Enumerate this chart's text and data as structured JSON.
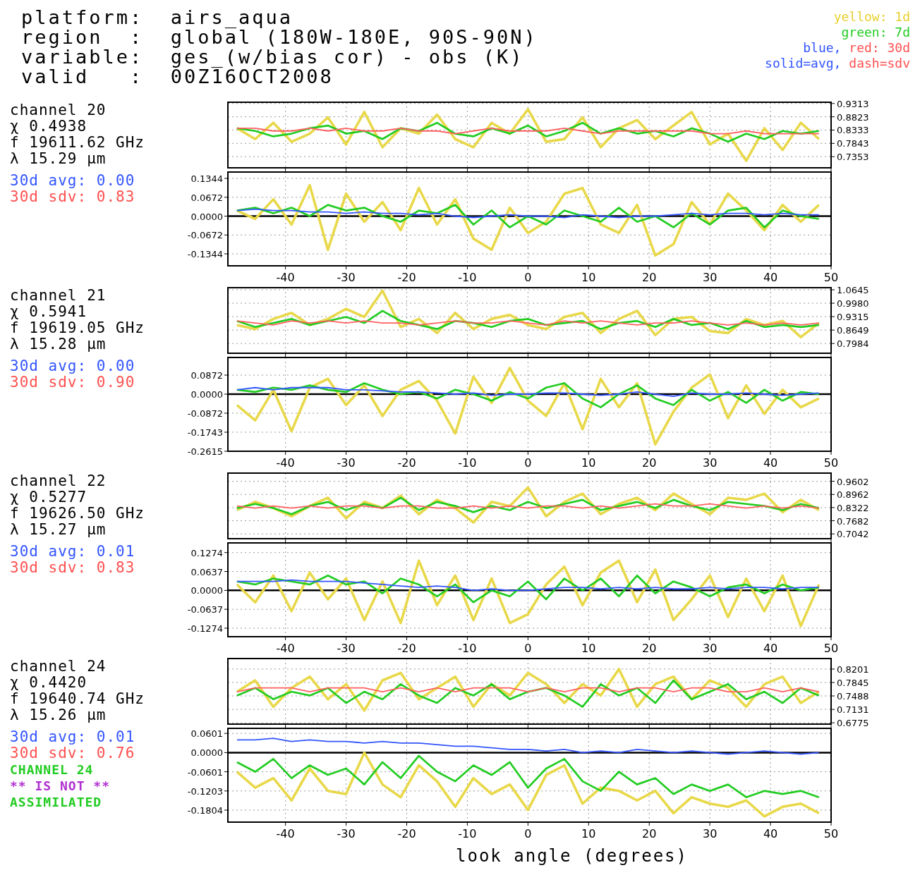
{
  "chart_data": [
    {
      "type": "other",
      "annotations": [
        "platform:  airs_aqua",
        "region  :  global (180W-180E, 90S-90N)",
        "variable:  ges_(w/bias cor) - obs (K)",
        "valid   :  00Z16OCT2008",
        "yellow: 1d",
        "green: 7d",
        "blue,",
        "red: 30d",
        "solid=avg,",
        "dash=sdv"
      ]
    },
    {
      "type": "line",
      "annotations": [
        "channel 20",
        "χ 0.4938",
        "f 19611.62 GHz",
        "λ 15.29 μm",
        "30d avg: 0.00",
        "30d sdv: 0.83"
      ],
      "x": [
        -48,
        -45,
        -42,
        -39,
        -36,
        -33,
        -30,
        -27,
        -24,
        -21,
        -18,
        -15,
        -12,
        -9,
        -6,
        -3,
        0,
        3,
        6,
        9,
        12,
        15,
        18,
        21,
        24,
        27,
        30,
        33,
        36,
        39,
        42,
        45,
        48
      ],
      "xlim": [
        -49.5,
        50
      ],
      "xticks": [
        -40,
        -30,
        -20,
        -10,
        0,
        10,
        20,
        30,
        40,
        50
      ],
      "ylim": [
        0.694,
        0.936
      ],
      "yticks": [
        {
          "value": 0.9313,
          "label": "0.9313"
        },
        {
          "value": 0.8823,
          "label": "0.8823"
        },
        {
          "value": 0.8333,
          "label": "0.8333"
        },
        {
          "value": 0.7843,
          "label": "0.7843"
        },
        {
          "value": 0.7353,
          "label": "0.7353"
        }
      ],
      "grid": true,
      "tick_labels": "y",
      "series": [
        {
          "color": "#e8d84a",
          "values": [
            0.84,
            0.8,
            0.86,
            0.79,
            0.82,
            0.88,
            0.78,
            0.9,
            0.77,
            0.84,
            0.82,
            0.89,
            0.8,
            0.77,
            0.86,
            0.82,
            0.91,
            0.79,
            0.8,
            0.88,
            0.77,
            0.84,
            0.87,
            0.8,
            0.85,
            0.9,
            0.78,
            0.82,
            0.72,
            0.84,
            0.76,
            0.86,
            0.8
          ]
        },
        {
          "color": "#22cc22",
          "values": [
            0.84,
            0.83,
            0.81,
            0.82,
            0.84,
            0.85,
            0.82,
            0.83,
            0.8,
            0.84,
            0.83,
            0.86,
            0.82,
            0.81,
            0.84,
            0.82,
            0.85,
            0.81,
            0.83,
            0.86,
            0.82,
            0.84,
            0.82,
            0.83,
            0.81,
            0.84,
            0.82,
            0.79,
            0.82,
            0.8,
            0.83,
            0.82,
            0.83
          ]
        },
        {
          "color": "#ff6060",
          "values": [
            0.84,
            0.84,
            0.83,
            0.83,
            0.84,
            0.83,
            0.84,
            0.83,
            0.83,
            0.84,
            0.83,
            0.83,
            0.82,
            0.83,
            0.84,
            0.83,
            0.83,
            0.83,
            0.84,
            0.83,
            0.82,
            0.83,
            0.83,
            0.83,
            0.83,
            0.83,
            0.82,
            0.82,
            0.83,
            0.82,
            0.82,
            0.82,
            0.82
          ]
        }
      ]
    },
    {
      "type": "line",
      "x": [
        -48,
        -45,
        -42,
        -39,
        -36,
        -33,
        -30,
        -27,
        -24,
        -21,
        -18,
        -15,
        -12,
        -9,
        -6,
        -3,
        0,
        3,
        6,
        9,
        12,
        15,
        18,
        21,
        24,
        27,
        30,
        33,
        36,
        39,
        42,
        45,
        48
      ],
      "xlim": [
        -49.5,
        50
      ],
      "xticks": [
        -40,
        -30,
        -20,
        -10,
        0,
        10,
        20,
        30,
        40,
        50
      ],
      "ylim": [
        -0.177,
        0.157
      ],
      "yticks": [
        {
          "value": 0.1344,
          "label": "0.1344"
        },
        {
          "value": 0.0672,
          "label": "0.0672"
        },
        {
          "value": 0,
          "label": "0.0000"
        },
        {
          "value": -0.0672,
          "label": "-0.0672"
        },
        {
          "value": -0.1344,
          "label": "-0.1344"
        }
      ],
      "grid": true,
      "ref_lines": [
        {
          "axis": "y",
          "value": 0,
          "color": "#000000"
        }
      ],
      "series": [
        {
          "color": "#e8d84a",
          "values": [
            0.02,
            -0.01,
            0.06,
            -0.03,
            0.11,
            -0.12,
            0.08,
            -0.02,
            0.05,
            -0.05,
            0.1,
            -0.03,
            0.06,
            -0.08,
            -0.12,
            0.03,
            -0.06,
            -0.02,
            0.08,
            0.1,
            -0.03,
            -0.06,
            0.04,
            -0.14,
            -0.1,
            0.05,
            -0.03,
            0.08,
            0.02,
            -0.05,
            0.04,
            -0.02,
            0.04
          ]
        },
        {
          "color": "#22cc22",
          "values": [
            0.02,
            0.03,
            0.01,
            0.03,
            0.0,
            0.04,
            0.02,
            0.03,
            0.0,
            -0.02,
            0.02,
            0.01,
            0.04,
            -0.03,
            0.02,
            -0.04,
            0.0,
            -0.03,
            0.02,
            0.0,
            -0.02,
            0.03,
            -0.02,
            0.0,
            -0.04,
            0.01,
            -0.03,
            0.02,
            0.03,
            -0.04,
            0.02,
            0.0,
            -0.01
          ]
        },
        {
          "color": "#3355ff",
          "values": [
            0.02,
            0.025,
            0.02,
            0.02,
            0.015,
            0.015,
            0.01,
            0.015,
            0.01,
            0.01,
            0.005,
            0.01,
            0.0,
            -0.005,
            0.0,
            0.005,
            0.0,
            0.0,
            -0.005,
            0.005,
            0.0,
            -0.005,
            0.0,
            0.0,
            0.005,
            0.01,
            0.005,
            0.01,
            0.01,
            0.005,
            0.01,
            0.005,
            0.005
          ]
        }
      ]
    },
    {
      "type": "line",
      "annotations": [
        "channel 21",
        "χ 0.5941",
        "f 19619.05 GHz",
        "λ 15.28 μm",
        "30d avg: 0.00",
        "30d sdv: 0.90"
      ],
      "x": [
        -48,
        -45,
        -42,
        -39,
        -36,
        -33,
        -30,
        -27,
        -24,
        -21,
        -18,
        -15,
        -12,
        -9,
        -6,
        -3,
        0,
        3,
        6,
        9,
        12,
        15,
        18,
        21,
        24,
        27,
        30,
        33,
        36,
        39,
        42,
        45,
        48
      ],
      "xlim": [
        -49.5,
        50
      ],
      "xticks": [
        -40,
        -30,
        -20,
        -10,
        0,
        10,
        20,
        30,
        40,
        50
      ],
      "ylim": [
        0.75,
        1.075
      ],
      "yticks": [
        {
          "value": 1.0645,
          "label": "1.0645"
        },
        {
          "value": 0.998,
          "label": "0.9980"
        },
        {
          "value": 0.9315,
          "label": "0.9315"
        },
        {
          "value": 0.8649,
          "label": "0.8649"
        },
        {
          "value": 0.7984,
          "label": "0.7984"
        }
      ],
      "grid": true,
      "tick_labels": "y",
      "series": [
        {
          "color": "#e8d84a",
          "values": [
            0.89,
            0.87,
            0.92,
            0.95,
            0.89,
            0.92,
            0.97,
            0.93,
            1.06,
            0.88,
            0.92,
            0.85,
            0.95,
            0.87,
            0.92,
            0.94,
            0.89,
            0.87,
            0.93,
            0.95,
            0.85,
            0.92,
            0.96,
            0.84,
            0.92,
            0.93,
            0.86,
            0.85,
            0.92,
            0.89,
            0.91,
            0.83,
            0.9
          ]
        },
        {
          "color": "#22cc22",
          "values": [
            0.91,
            0.88,
            0.9,
            0.92,
            0.89,
            0.91,
            0.93,
            0.9,
            0.96,
            0.91,
            0.89,
            0.87,
            0.91,
            0.9,
            0.88,
            0.91,
            0.92,
            0.89,
            0.9,
            0.91,
            0.87,
            0.9,
            0.91,
            0.88,
            0.92,
            0.89,
            0.9,
            0.87,
            0.91,
            0.88,
            0.89,
            0.88,
            0.89
          ]
        },
        {
          "color": "#ff6060",
          "values": [
            0.91,
            0.9,
            0.89,
            0.91,
            0.9,
            0.91,
            0.9,
            0.91,
            0.9,
            0.9,
            0.89,
            0.9,
            0.91,
            0.9,
            0.9,
            0.91,
            0.9,
            0.89,
            0.91,
            0.9,
            0.91,
            0.9,
            0.89,
            0.9,
            0.9,
            0.91,
            0.9,
            0.89,
            0.9,
            0.89,
            0.9,
            0.89,
            0.9
          ]
        }
      ]
    },
    {
      "type": "line",
      "x": [
        -48,
        -45,
        -42,
        -39,
        -36,
        -33,
        -30,
        -27,
        -24,
        -21,
        -18,
        -15,
        -12,
        -9,
        -6,
        -3,
        0,
        3,
        6,
        9,
        12,
        15,
        18,
        21,
        24,
        27,
        30,
        33,
        36,
        39,
        42,
        45,
        48
      ],
      "xlim": [
        -49.5,
        50
      ],
      "xticks": [
        -40,
        -30,
        -20,
        -10,
        0,
        10,
        20,
        30,
        40,
        50
      ],
      "ylim": [
        -0.2615,
        0.168
      ],
      "yticks": [
        {
          "value": 0.0872,
          "label": "0.0872"
        },
        {
          "value": 0,
          "label": "0.0000"
        },
        {
          "value": -0.0872,
          "label": "-0.0872"
        },
        {
          "value": -0.1743,
          "label": "-0.1743"
        },
        {
          "value": -0.2615,
          "label": "-0.2615"
        }
      ],
      "grid": true,
      "ref_lines": [
        {
          "axis": "y",
          "value": 0,
          "color": "#000000"
        }
      ],
      "series": [
        {
          "color": "#e8d84a",
          "values": [
            -0.05,
            -0.12,
            0.02,
            -0.17,
            0.03,
            0.07,
            -0.05,
            0.04,
            -0.1,
            0.02,
            0.06,
            -0.03,
            -0.18,
            0.08,
            -0.04,
            0.12,
            -0.03,
            -0.1,
            0.05,
            -0.16,
            0.07,
            -0.06,
            0.05,
            -0.23,
            -0.08,
            0.03,
            0.09,
            -0.11,
            0.04,
            -0.09,
            0.02,
            -0.06,
            -0.02
          ]
        },
        {
          "color": "#22cc22",
          "values": [
            0.02,
            0.01,
            0.03,
            0.02,
            0.04,
            0.02,
            0.01,
            0.05,
            0.02,
            0.0,
            0.01,
            -0.02,
            0.02,
            0.0,
            -0.03,
            0.01,
            -0.02,
            0.03,
            0.05,
            -0.02,
            -0.06,
            0.0,
            0.04,
            -0.02,
            -0.05,
            0.02,
            -0.03,
            0.01,
            -0.04,
            0.02,
            -0.03,
            0.01,
            0.0
          ]
        },
        {
          "color": "#3355ff",
          "values": [
            0.02,
            0.03,
            0.02,
            0.03,
            0.03,
            0.03,
            0.02,
            0.02,
            0.015,
            0.01,
            0.01,
            0.005,
            0.0,
            0.005,
            -0.005,
            0.0,
            0.0,
            0.005,
            0.005,
            0.0,
            -0.005,
            0.0,
            0.01,
            0.0,
            -0.01,
            0.005,
            0.0,
            0.0,
            0.005,
            0.0,
            -0.005,
            0.0,
            0.005
          ]
        }
      ]
    },
    {
      "type": "line",
      "annotations": [
        "channel 22",
        "χ 0.5277",
        "f 19626.50 GHz",
        "λ 15.27 μm",
        "30d avg: 0.01",
        "30d sdv: 0.83"
      ],
      "x": [
        -48,
        -45,
        -42,
        -39,
        -36,
        -33,
        -30,
        -27,
        -24,
        -21,
        -18,
        -15,
        -12,
        -9,
        -6,
        -3,
        0,
        3,
        6,
        9,
        12,
        15,
        18,
        21,
        24,
        27,
        30,
        33,
        36,
        39,
        42,
        45,
        48
      ],
      "xlim": [
        -49.5,
        50
      ],
      "xticks": [
        -40,
        -30,
        -20,
        -10,
        0,
        10,
        20,
        30,
        40,
        50
      ],
      "ylim": [
        0.681,
        1.0
      ],
      "yticks": [
        {
          "value": 0.9602,
          "label": "0.9602"
        },
        {
          "value": 0.8962,
          "label": "0.8962"
        },
        {
          "value": 0.8322,
          "label": "0.8322"
        },
        {
          "value": 0.7682,
          "label": "0.7682"
        },
        {
          "value": 0.7042,
          "label": "0.7042"
        }
      ],
      "grid": true,
      "tick_labels": "y",
      "series": [
        {
          "color": "#e8d84a",
          "values": [
            0.82,
            0.86,
            0.83,
            0.79,
            0.84,
            0.88,
            0.78,
            0.86,
            0.83,
            0.89,
            0.8,
            0.87,
            0.83,
            0.76,
            0.86,
            0.84,
            0.93,
            0.79,
            0.86,
            0.9,
            0.8,
            0.85,
            0.88,
            0.82,
            0.9,
            0.85,
            0.8,
            0.88,
            0.87,
            0.9,
            0.81,
            0.87,
            0.82
          ]
        },
        {
          "color": "#22cc22",
          "values": [
            0.83,
            0.85,
            0.83,
            0.8,
            0.84,
            0.86,
            0.82,
            0.85,
            0.83,
            0.88,
            0.82,
            0.86,
            0.84,
            0.81,
            0.84,
            0.82,
            0.86,
            0.83,
            0.85,
            0.87,
            0.82,
            0.84,
            0.86,
            0.83,
            0.87,
            0.84,
            0.82,
            0.86,
            0.85,
            0.84,
            0.82,
            0.85,
            0.83
          ]
        },
        {
          "color": "#ff6060",
          "values": [
            0.84,
            0.83,
            0.84,
            0.83,
            0.84,
            0.83,
            0.84,
            0.84,
            0.83,
            0.84,
            0.84,
            0.83,
            0.83,
            0.84,
            0.83,
            0.84,
            0.83,
            0.84,
            0.84,
            0.83,
            0.84,
            0.83,
            0.84,
            0.85,
            0.84,
            0.84,
            0.85,
            0.84,
            0.83,
            0.84,
            0.83,
            0.84,
            0.83
          ]
        }
      ]
    },
    {
      "type": "line",
      "x": [
        -48,
        -45,
        -42,
        -39,
        -36,
        -33,
        -30,
        -27,
        -24,
        -21,
        -18,
        -15,
        -12,
        -9,
        -6,
        -3,
        0,
        3,
        6,
        9,
        12,
        15,
        18,
        21,
        24,
        27,
        30,
        33,
        36,
        39,
        42,
        45,
        48
      ],
      "xlim": [
        -49.5,
        50
      ],
      "xticks": [
        -40,
        -30,
        -20,
        -10,
        0,
        10,
        20,
        30,
        40,
        50
      ],
      "ylim": [
        -0.156,
        0.16
      ],
      "yticks": [
        {
          "value": 0.1274,
          "label": "0.1274"
        },
        {
          "value": 0.0637,
          "label": "0.0637"
        },
        {
          "value": 0,
          "label": "0.0000"
        },
        {
          "value": -0.0637,
          "label": "-0.0637"
        },
        {
          "value": -0.1274,
          "label": "-0.1274"
        }
      ],
      "grid": true,
      "ref_lines": [
        {
          "axis": "y",
          "value": 0,
          "color": "#000000"
        }
      ],
      "series": [
        {
          "color": "#e8d84a",
          "values": [
            0.02,
            -0.04,
            0.05,
            -0.07,
            0.06,
            -0.03,
            0.04,
            -0.1,
            0.03,
            -0.11,
            0.1,
            -0.05,
            0.05,
            -0.1,
            0.04,
            -0.11,
            -0.08,
            0.02,
            0.08,
            -0.05,
            0.06,
            0.1,
            -0.04,
            0.07,
            -0.1,
            -0.03,
            0.05,
            -0.09,
            0.04,
            -0.07,
            0.05,
            -0.12,
            0.02
          ]
        },
        {
          "color": "#22cc22",
          "values": [
            0.03,
            0.02,
            0.04,
            0.03,
            0.02,
            0.05,
            0.02,
            0.03,
            -0.01,
            0.04,
            0.02,
            -0.02,
            0.02,
            -0.04,
            0.0,
            -0.02,
            0.03,
            -0.03,
            0.04,
            0.0,
            0.04,
            -0.02,
            0.05,
            -0.01,
            0.03,
            0.01,
            -0.02,
            0.01,
            0.02,
            -0.01,
            0.02,
            0.0,
            0.01
          ]
        },
        {
          "color": "#3355ff",
          "values": [
            0.03,
            0.03,
            0.03,
            0.035,
            0.03,
            0.03,
            0.03,
            0.025,
            0.02,
            0.015,
            0.01,
            0.015,
            0.01,
            0.0,
            0.005,
            0.0,
            0.0,
            0.005,
            0.01,
            0.01,
            0.005,
            0.01,
            0.005,
            0.01,
            0.005,
            0.005,
            0.01,
            0.005,
            0.01,
            0.01,
            0.005,
            0.01,
            0.01
          ]
        }
      ]
    },
    {
      "type": "line",
      "annotations": [
        "channel 24",
        "χ 0.4420",
        "f 19640.74 GHz",
        "λ 15.26 μm",
        "30d avg: 0.01",
        "30d sdv: 0.76",
        "CHANNEL 24",
        "** IS NOT **",
        "ASSIMILATED"
      ],
      "x": [
        -48,
        -45,
        -42,
        -39,
        -36,
        -33,
        -30,
        -27,
        -24,
        -21,
        -18,
        -15,
        -12,
        -9,
        -6,
        -3,
        0,
        3,
        6,
        9,
        12,
        15,
        18,
        21,
        24,
        27,
        30,
        33,
        36,
        39,
        42,
        45,
        48
      ],
      "xlim": [
        -49.5,
        50
      ],
      "xticks": [
        -40,
        -30,
        -20,
        -10,
        0,
        10,
        20,
        30,
        40,
        50
      ],
      "ylim": [
        0.674,
        0.848
      ],
      "yticks": [
        {
          "value": 0.8201,
          "label": "0.8201"
        },
        {
          "value": 0.7845,
          "label": "0.7845"
        },
        {
          "value": 0.7488,
          "label": "0.7488"
        },
        {
          "value": 0.7131,
          "label": "0.7131"
        },
        {
          "value": 0.6775,
          "label": "0.6775"
        }
      ],
      "grid": true,
      "tick_labels": "y",
      "series": [
        {
          "color": "#e8d84a",
          "values": [
            0.76,
            0.79,
            0.72,
            0.77,
            0.8,
            0.74,
            0.78,
            0.71,
            0.79,
            0.81,
            0.74,
            0.77,
            0.8,
            0.72,
            0.78,
            0.75,
            0.81,
            0.78,
            0.73,
            0.78,
            0.75,
            0.82,
            0.72,
            0.78,
            0.8,
            0.74,
            0.79,
            0.77,
            0.72,
            0.78,
            0.8,
            0.73,
            0.76
          ]
        },
        {
          "color": "#22cc22",
          "values": [
            0.75,
            0.77,
            0.74,
            0.76,
            0.75,
            0.77,
            0.73,
            0.76,
            0.74,
            0.78,
            0.75,
            0.73,
            0.77,
            0.75,
            0.78,
            0.74,
            0.76,
            0.77,
            0.75,
            0.72,
            0.78,
            0.75,
            0.77,
            0.73,
            0.79,
            0.74,
            0.76,
            0.78,
            0.74,
            0.76,
            0.73,
            0.77,
            0.75
          ]
        },
        {
          "color": "#ff6060",
          "values": [
            0.76,
            0.77,
            0.77,
            0.77,
            0.76,
            0.77,
            0.77,
            0.77,
            0.76,
            0.77,
            0.76,
            0.77,
            0.76,
            0.77,
            0.77,
            0.77,
            0.76,
            0.77,
            0.76,
            0.77,
            0.77,
            0.76,
            0.77,
            0.77,
            0.76,
            0.77,
            0.77,
            0.76,
            0.76,
            0.77,
            0.76,
            0.77,
            0.76
          ]
        }
      ]
    },
    {
      "type": "line",
      "xlabel": "look angle (degrees)",
      "x": [
        -48,
        -45,
        -42,
        -39,
        -36,
        -33,
        -30,
        -27,
        -24,
        -21,
        -18,
        -15,
        -12,
        -9,
        -6,
        -3,
        0,
        3,
        6,
        9,
        12,
        15,
        18,
        21,
        24,
        27,
        30,
        33,
        36,
        39,
        42,
        45,
        48
      ],
      "xlim": [
        -49.5,
        50
      ],
      "xticks": [
        -40,
        -30,
        -20,
        -10,
        0,
        10,
        20,
        30,
        40,
        50
      ],
      "ylim": [
        -0.218,
        0.076
      ],
      "yticks": [
        {
          "value": 0.0601,
          "label": "0.0601"
        },
        {
          "value": 0,
          "label": "0.0000"
        },
        {
          "value": -0.0601,
          "label": "-0.0601"
        },
        {
          "value": -0.1203,
          "label": "-0.1203"
        },
        {
          "value": -0.1804,
          "label": "-0.1804"
        }
      ],
      "grid": true,
      "ref_lines": [
        {
          "axis": "y",
          "value": 0,
          "color": "#000000"
        }
      ],
      "series": [
        {
          "color": "#e8d84a",
          "values": [
            -0.06,
            -0.11,
            -0.08,
            -0.15,
            -0.05,
            -0.12,
            -0.13,
            0.0,
            -0.1,
            -0.14,
            -0.04,
            -0.09,
            -0.17,
            -0.08,
            -0.13,
            -0.1,
            -0.18,
            -0.07,
            -0.04,
            -0.16,
            -0.11,
            -0.12,
            -0.15,
            -0.12,
            -0.19,
            -0.14,
            -0.16,
            -0.17,
            -0.15,
            -0.2,
            -0.17,
            -0.16,
            -0.19
          ]
        },
        {
          "color": "#22cc22",
          "values": [
            -0.03,
            -0.06,
            -0.02,
            -0.08,
            -0.04,
            -0.07,
            -0.05,
            -0.1,
            -0.03,
            -0.08,
            -0.01,
            -0.06,
            -0.09,
            -0.04,
            -0.07,
            -0.03,
            -0.11,
            -0.05,
            -0.02,
            -0.09,
            -0.12,
            -0.06,
            -0.1,
            -0.08,
            -0.13,
            -0.1,
            -0.12,
            -0.1,
            -0.14,
            -0.12,
            -0.13,
            -0.12,
            -0.14
          ]
        },
        {
          "color": "#3355ff",
          "values": [
            0.04,
            0.04,
            0.045,
            0.035,
            0.04,
            0.035,
            0.035,
            0.03,
            0.035,
            0.03,
            0.03,
            0.025,
            0.02,
            0.02,
            0.015,
            0.01,
            0.01,
            0.005,
            0.01,
            0.0,
            0.005,
            0.0,
            0.01,
            0.005,
            0.0,
            0.005,
            0.0,
            -0.005,
            0.0,
            0.005,
            0.0,
            -0.005,
            0.0
          ]
        }
      ]
    }
  ]
}
